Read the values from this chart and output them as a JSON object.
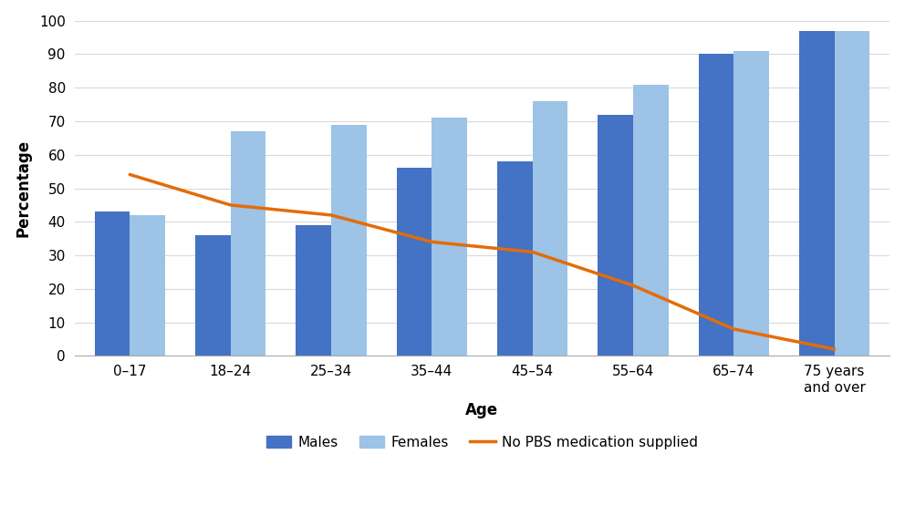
{
  "categories": [
    "0–17",
    "18–24",
    "25–34",
    "35–44",
    "45–54",
    "55–64",
    "65–74",
    "75 years\nand over"
  ],
  "males": [
    43,
    36,
    39,
    56,
    58,
    72,
    90,
    97
  ],
  "females": [
    42,
    67,
    69,
    71,
    76,
    81,
    91,
    97
  ],
  "no_pbs": [
    54.1,
    45,
    42,
    34,
    31,
    21,
    8,
    2
  ],
  "male_color": "#4472C4",
  "female_color": "#9DC3E6",
  "line_color": "#E36C09",
  "ylabel": "Percentage",
  "xlabel": "Age",
  "ylim": [
    0,
    100
  ],
  "yticks": [
    0,
    10,
    20,
    30,
    40,
    50,
    60,
    70,
    80,
    90,
    100
  ],
  "legend_labels": [
    "Males",
    "Females",
    "No PBS medication supplied"
  ],
  "bar_width": 0.35,
  "grid_color": "#D9D9D9",
  "background_color": "#FFFFFF",
  "label_fontsize": 12,
  "tick_fontsize": 11,
  "legend_fontsize": 11
}
